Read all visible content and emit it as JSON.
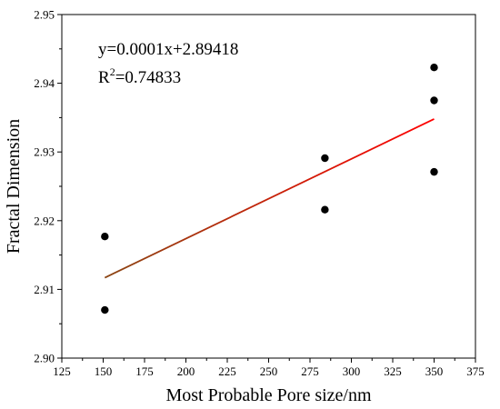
{
  "chart_data": {
    "type": "scatter",
    "xlabel": "Most Probable Pore size/nm",
    "ylabel": "Fractal Dimension",
    "xlim": [
      125,
      375
    ],
    "ylim": [
      2.9,
      2.95
    ],
    "x_ticks": [
      "125",
      "150",
      "175",
      "200",
      "225",
      "250",
      "275",
      "300",
      "325",
      "350",
      "375"
    ],
    "y_ticks": [
      "2.90",
      "2.91",
      "2.92",
      "2.93",
      "2.94",
      "2.95"
    ],
    "series": [
      {
        "marker_color": "#000000",
        "points": [
          {
            "x": 151,
            "y": 2.9177
          },
          {
            "x": 151,
            "y": 2.907
          },
          {
            "x": 284,
            "y": 2.9291
          },
          {
            "x": 284,
            "y": 2.9216
          },
          {
            "x": 350,
            "y": 2.9423
          },
          {
            "x": 350,
            "y": 2.9375
          },
          {
            "x": 350,
            "y": 2.9271
          }
        ]
      }
    ],
    "fit_line": {
      "x_start": 151,
      "x_end": 350,
      "y_start": 2.9117,
      "y_end": 2.9348,
      "color_start": "#8b4513",
      "color_end": "#ff0000"
    },
    "annotation": {
      "equation": "y=0.0001x+2.89418",
      "r2_prefix": "R",
      "r2_sup": "2",
      "r2_value": "=0.74833"
    },
    "grid": false,
    "legend": "none"
  }
}
